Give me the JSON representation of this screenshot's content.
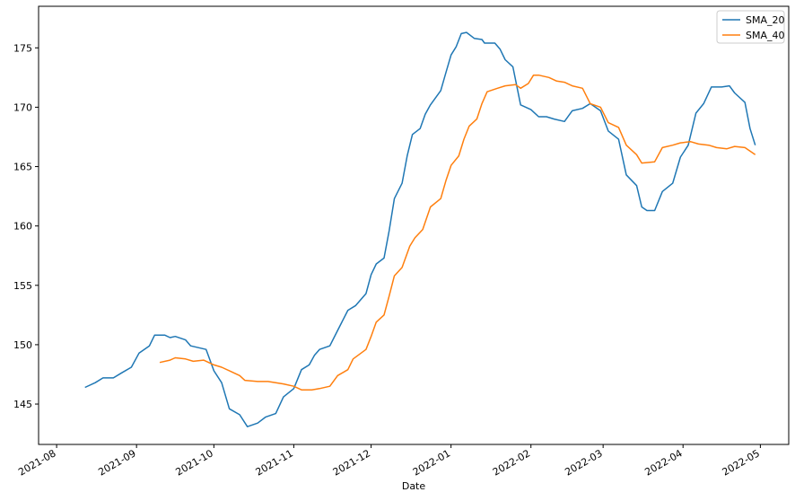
{
  "chart_data": {
    "type": "line",
    "title": "",
    "xlabel": "Date",
    "ylabel": "",
    "xlim": [
      "2021-07-25",
      "2022-05-12"
    ],
    "ylim": [
      141.6,
      178.5
    ],
    "yticks": [
      145,
      150,
      155,
      160,
      165,
      170,
      175
    ],
    "xticks": [
      {
        "date": "2021-08-01",
        "label": "2021-08"
      },
      {
        "date": "2021-09-01",
        "label": "2021-09"
      },
      {
        "date": "2021-10-01",
        "label": "2021-10"
      },
      {
        "date": "2021-11-01",
        "label": "2021-11"
      },
      {
        "date": "2021-12-01",
        "label": "2021-12"
      },
      {
        "date": "2022-01-01",
        "label": "2022-01"
      },
      {
        "date": "2022-02-01",
        "label": "2022-02"
      },
      {
        "date": "2022-03-01",
        "label": "2022-03"
      },
      {
        "date": "2022-04-01",
        "label": "2022-04"
      },
      {
        "date": "2022-05-01",
        "label": "2022-05"
      }
    ],
    "grid": false,
    "legend_position": "top-right",
    "series": [
      {
        "name": "SMA_20",
        "color": "#1f77b4",
        "points": [
          [
            "2021-08-12",
            146.4
          ],
          [
            "2021-08-16",
            146.8
          ],
          [
            "2021-08-19",
            147.2
          ],
          [
            "2021-08-23",
            147.2
          ],
          [
            "2021-08-26",
            147.6
          ],
          [
            "2021-08-30",
            148.1
          ],
          [
            "2021-09-02",
            149.3
          ],
          [
            "2021-09-06",
            149.9
          ],
          [
            "2021-09-08",
            150.8
          ],
          [
            "2021-09-12",
            150.8
          ],
          [
            "2021-09-14",
            150.6
          ],
          [
            "2021-09-16",
            150.7
          ],
          [
            "2021-09-20",
            150.4
          ],
          [
            "2021-09-22",
            149.9
          ],
          [
            "2021-09-28",
            149.6
          ],
          [
            "2021-10-01",
            147.8
          ],
          [
            "2021-10-04",
            146.8
          ],
          [
            "2021-10-07",
            144.6
          ],
          [
            "2021-10-11",
            144.1
          ],
          [
            "2021-10-14",
            143.1
          ],
          [
            "2021-10-18",
            143.4
          ],
          [
            "2021-10-21",
            143.9
          ],
          [
            "2021-10-25",
            144.2
          ],
          [
            "2021-10-28",
            145.6
          ],
          [
            "2021-11-01",
            146.3
          ],
          [
            "2021-11-04",
            147.9
          ],
          [
            "2021-11-07",
            148.3
          ],
          [
            "2021-11-09",
            149.1
          ],
          [
            "2021-11-11",
            149.6
          ],
          [
            "2021-11-15",
            149.9
          ],
          [
            "2021-11-18",
            151.2
          ],
          [
            "2021-11-22",
            152.9
          ],
          [
            "2021-11-25",
            153.3
          ],
          [
            "2021-11-29",
            154.3
          ],
          [
            "2021-12-01",
            155.9
          ],
          [
            "2021-12-03",
            156.8
          ],
          [
            "2021-12-06",
            157.3
          ],
          [
            "2021-12-08",
            159.6
          ],
          [
            "2021-12-10",
            162.3
          ],
          [
            "2021-12-13",
            163.6
          ],
          [
            "2021-12-15",
            165.9
          ],
          [
            "2021-12-17",
            167.7
          ],
          [
            "2021-12-20",
            168.2
          ],
          [
            "2021-12-22",
            169.4
          ],
          [
            "2021-12-24",
            170.2
          ],
          [
            "2021-12-28",
            171.4
          ],
          [
            "2021-12-30",
            172.9
          ],
          [
            "2022-01-01",
            174.4
          ],
          [
            "2022-01-03",
            175.1
          ],
          [
            "2022-01-05",
            176.2
          ],
          [
            "2022-01-07",
            176.3
          ],
          [
            "2022-01-10",
            175.8
          ],
          [
            "2022-01-13",
            175.7
          ],
          [
            "2022-01-14",
            175.4
          ],
          [
            "2022-01-18",
            175.4
          ],
          [
            "2022-01-20",
            174.9
          ],
          [
            "2022-01-22",
            174.0
          ],
          [
            "2022-01-25",
            173.4
          ],
          [
            "2022-01-28",
            170.2
          ],
          [
            "2022-02-01",
            169.8
          ],
          [
            "2022-02-04",
            169.2
          ],
          [
            "2022-02-07",
            169.2
          ],
          [
            "2022-02-10",
            169.0
          ],
          [
            "2022-02-14",
            168.8
          ],
          [
            "2022-02-17",
            169.7
          ],
          [
            "2022-02-21",
            169.9
          ],
          [
            "2022-02-24",
            170.3
          ],
          [
            "2022-02-28",
            169.7
          ],
          [
            "2022-03-03",
            168.0
          ],
          [
            "2022-03-07",
            167.3
          ],
          [
            "2022-03-10",
            164.3
          ],
          [
            "2022-03-14",
            163.4
          ],
          [
            "2022-03-16",
            161.6
          ],
          [
            "2022-03-18",
            161.3
          ],
          [
            "2022-03-21",
            161.3
          ],
          [
            "2022-03-24",
            162.9
          ],
          [
            "2022-03-28",
            163.6
          ],
          [
            "2022-03-31",
            165.8
          ],
          [
            "2022-04-03",
            166.8
          ],
          [
            "2022-04-06",
            169.5
          ],
          [
            "2022-04-09",
            170.3
          ],
          [
            "2022-04-12",
            171.7
          ],
          [
            "2022-04-16",
            171.7
          ],
          [
            "2022-04-19",
            171.8
          ],
          [
            "2022-04-21",
            171.2
          ],
          [
            "2022-04-25",
            170.4
          ],
          [
            "2022-04-27",
            168.2
          ],
          [
            "2022-04-29",
            166.8
          ]
        ]
      },
      {
        "name": "SMA_40",
        "color": "#ff7f0e",
        "points": [
          [
            "2021-09-10",
            148.5
          ],
          [
            "2021-09-14",
            148.7
          ],
          [
            "2021-09-16",
            148.9
          ],
          [
            "2021-09-20",
            148.8
          ],
          [
            "2021-09-23",
            148.6
          ],
          [
            "2021-09-27",
            148.7
          ],
          [
            "2021-10-01",
            148.3
          ],
          [
            "2021-10-04",
            148.1
          ],
          [
            "2021-10-08",
            147.7
          ],
          [
            "2021-10-11",
            147.4
          ],
          [
            "2021-10-13",
            147.0
          ],
          [
            "2021-10-18",
            146.9
          ],
          [
            "2021-10-22",
            146.9
          ],
          [
            "2021-10-25",
            146.8
          ],
          [
            "2021-10-28",
            146.7
          ],
          [
            "2021-11-01",
            146.5
          ],
          [
            "2021-11-04",
            146.2
          ],
          [
            "2021-11-08",
            146.2
          ],
          [
            "2021-11-11",
            146.3
          ],
          [
            "2021-11-15",
            146.5
          ],
          [
            "2021-11-18",
            147.4
          ],
          [
            "2021-11-22",
            147.9
          ],
          [
            "2021-11-24",
            148.8
          ],
          [
            "2021-11-29",
            149.6
          ],
          [
            "2021-12-01",
            150.7
          ],
          [
            "2021-12-03",
            151.9
          ],
          [
            "2021-12-06",
            152.5
          ],
          [
            "2021-12-08",
            154.1
          ],
          [
            "2021-12-10",
            155.8
          ],
          [
            "2021-12-13",
            156.5
          ],
          [
            "2021-12-16",
            158.3
          ],
          [
            "2021-12-18",
            159.0
          ],
          [
            "2021-12-21",
            159.7
          ],
          [
            "2021-12-24",
            161.6
          ],
          [
            "2021-12-28",
            162.3
          ],
          [
            "2021-12-30",
            163.8
          ],
          [
            "2022-01-01",
            165.1
          ],
          [
            "2022-01-04",
            165.9
          ],
          [
            "2022-01-06",
            167.3
          ],
          [
            "2022-01-08",
            168.4
          ],
          [
            "2022-01-11",
            169.0
          ],
          [
            "2022-01-13",
            170.3
          ],
          [
            "2022-01-15",
            171.3
          ],
          [
            "2022-01-19",
            171.6
          ],
          [
            "2022-01-22",
            171.8
          ],
          [
            "2022-01-26",
            171.9
          ],
          [
            "2022-01-28",
            171.6
          ],
          [
            "2022-01-31",
            172.0
          ],
          [
            "2022-02-02",
            172.7
          ],
          [
            "2022-02-04",
            172.7
          ],
          [
            "2022-02-08",
            172.5
          ],
          [
            "2022-02-11",
            172.2
          ],
          [
            "2022-02-14",
            172.1
          ],
          [
            "2022-02-17",
            171.8
          ],
          [
            "2022-02-21",
            171.6
          ],
          [
            "2022-02-24",
            170.3
          ],
          [
            "2022-02-28",
            170.0
          ],
          [
            "2022-03-03",
            168.7
          ],
          [
            "2022-03-07",
            168.3
          ],
          [
            "2022-03-10",
            166.8
          ],
          [
            "2022-03-14",
            166.0
          ],
          [
            "2022-03-16",
            165.3
          ],
          [
            "2022-03-21",
            165.4
          ],
          [
            "2022-03-24",
            166.6
          ],
          [
            "2022-03-28",
            166.8
          ],
          [
            "2022-03-31",
            167.0
          ],
          [
            "2022-04-04",
            167.1
          ],
          [
            "2022-04-07",
            166.9
          ],
          [
            "2022-04-11",
            166.8
          ],
          [
            "2022-04-14",
            166.6
          ],
          [
            "2022-04-18",
            166.5
          ],
          [
            "2022-04-21",
            166.7
          ],
          [
            "2022-04-25",
            166.6
          ],
          [
            "2022-04-29",
            166.0
          ]
        ]
      }
    ]
  }
}
